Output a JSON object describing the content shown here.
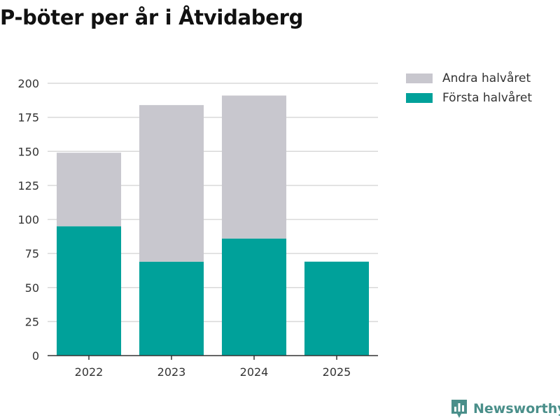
{
  "title": "P-böter per år i Åtvidaberg",
  "brand": {
    "name": "Newsworthy",
    "icon": "newsworthy-logo-icon",
    "color": "#4a8f8a"
  },
  "colors": {
    "first": "#00a19a",
    "second": "#c8c7ce",
    "grid": "#d9d9d9",
    "axis": "#333333"
  },
  "chart_data": {
    "type": "bar",
    "stacked": true,
    "title": "P-böter per år i Åtvidaberg",
    "xlabel": "",
    "ylabel": "",
    "ylim": [
      0,
      200
    ],
    "yticks": [
      0,
      25,
      50,
      75,
      100,
      125,
      150,
      175,
      200
    ],
    "categories": [
      "2022",
      "2023",
      "2024",
      "2025"
    ],
    "series": [
      {
        "name": "Första halvåret",
        "values": [
          95,
          69,
          86,
          69
        ]
      },
      {
        "name": "Andra halvåret",
        "values": [
          54,
          115,
          105,
          0
        ]
      }
    ],
    "legend": [
      {
        "label": "Andra halvåret",
        "series": "Andra halvåret"
      },
      {
        "label": "Första halvåret",
        "series": "Första halvåret"
      }
    ],
    "legend_position": "top-right",
    "grid": true
  }
}
